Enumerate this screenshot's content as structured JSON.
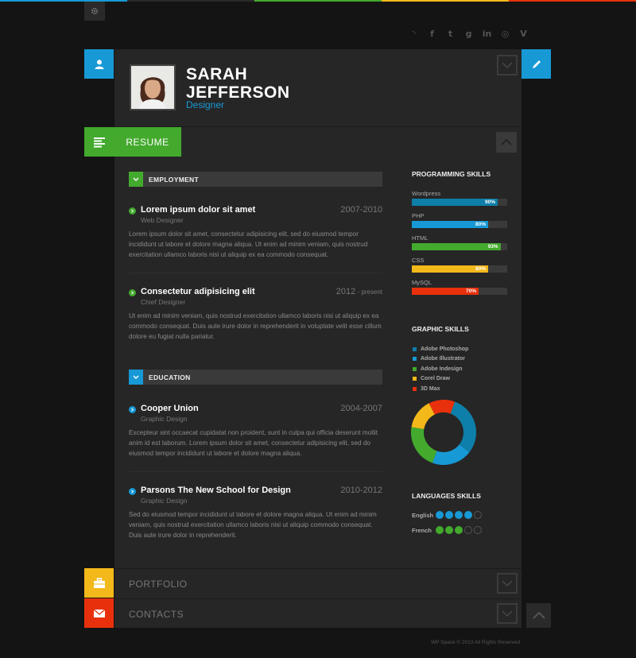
{
  "colors": {
    "blue": "#1799d6",
    "green": "#43aa2e",
    "yellow": "#f3b81a",
    "red": "#e8310c",
    "teal": "#0e7fa8",
    "background": "#141414",
    "card": "#262626"
  },
  "topbar": {
    "segments": [
      "#1799d6",
      "#2a2a2a",
      "#43aa2e",
      "#f3b81a",
      "#e8310c"
    ],
    "settings_icon": "gear-icon"
  },
  "social": [
    {
      "name": "rss",
      "glyph": "◝"
    },
    {
      "name": "facebook",
      "glyph": "f"
    },
    {
      "name": "twitter",
      "glyph": "t"
    },
    {
      "name": "google-plus",
      "glyph": "g"
    },
    {
      "name": "linkedin",
      "glyph": "in"
    },
    {
      "name": "dribbble",
      "glyph": "◎"
    },
    {
      "name": "vimeo",
      "glyph": "V"
    }
  ],
  "profile": {
    "first_name": "SARAH",
    "last_name": "JEFFERSON",
    "role": "Designer"
  },
  "nav": {
    "resume": "RESUME",
    "portfolio": "PORTFOLIO",
    "contacts": "CONTACTS"
  },
  "employment": {
    "heading": "EMPLOYMENT",
    "items": [
      {
        "title": "Lorem ipsum dolor sit amet",
        "date": "2007-2010",
        "date_suffix": "",
        "subtitle": "Web Designer",
        "description": "Lorem ipsum dolor sit amet, consectetur adipisicing elit, sed do eiusmod tempor incididunt ut labore et dolore magna aliqua. Ut enim ad minim veniam, quis nostrud exercitation ullamco laboris nisi ut aliquip ex ea commodo consequat."
      },
      {
        "title": "Consectetur adipisicing elit",
        "date": "2012",
        "date_suffix": " - present",
        "subtitle": "Chief Designer",
        "description": "Ut enim ad minim veniam, quis nostrud exercitation ullamco laboris nisi ut aliquip ex ea commodo consequat. Duis aute irure dolor in reprehenderit in voluptate velit esse cillum dolore eu fugiat nulla pariatur."
      }
    ]
  },
  "education": {
    "heading": "EDUCATION",
    "items": [
      {
        "title": "Cooper Union",
        "date": "2004-2007",
        "subtitle": "Graphic Design",
        "description": "Excepteur sint occaecat cupidatat non proident, sunt in culpa qui officia deserunt mollit anim id est laborum. Lorem ipsum dolor sit amet, consectetur adipisicing elit, sed do eiusmod tempor incididunt ut labore et dolore magna aliqua."
      },
      {
        "title": "Parsons The New School for Design",
        "date": "2010-2012",
        "subtitle": "Graphic Design",
        "description": "Sed do eiusmod tempor incididunt ut labore et dolore magna aliqua. Ut enim ad minim veniam, quis nostrud exercitation ullamco laboris nisi ut aliquip commodo consequat. Duis aute irure dolor in reprehenderit."
      }
    ]
  },
  "programming_skills": {
    "heading": "PROGRAMMING SKILLS",
    "items": [
      {
        "name": "Wordpress",
        "percent": 90,
        "label": "90%",
        "color": "#0e7fa8"
      },
      {
        "name": "PHP",
        "percent": 80,
        "label": "80%",
        "color": "#1799d6"
      },
      {
        "name": "HTML",
        "percent": 93,
        "label": "93%",
        "color": "#43aa2e"
      },
      {
        "name": "CSS",
        "percent": 80,
        "label": "80%",
        "color": "#f3b81a"
      },
      {
        "name": "MySQL",
        "percent": 70,
        "label": "70%",
        "color": "#e8310c"
      }
    ]
  },
  "graphic_skills": {
    "heading": "GRAPHIC SKILLS",
    "items": [
      {
        "name": "Adobe Photoshop",
        "value": 30,
        "color": "#0e7fa8"
      },
      {
        "name": "Adobe Illustrator",
        "value": 20,
        "color": "#1799d6"
      },
      {
        "name": "Adobe Indesign",
        "value": 22,
        "color": "#43aa2e"
      },
      {
        "name": "Corel Draw",
        "value": 15,
        "color": "#f3b81a"
      },
      {
        "name": "3D Max",
        "value": 13,
        "color": "#e8310c"
      }
    ]
  },
  "languages": {
    "heading": "LANGUAGES  SKILLS",
    "items": [
      {
        "name": "English",
        "level": 4,
        "max": 5,
        "color": "#1799d6"
      },
      {
        "name": "French",
        "level": 3,
        "max": 5,
        "color": "#43aa2e"
      }
    ]
  },
  "footer": {
    "copyright": "WP Space © 2013 All Rights Reserved"
  }
}
